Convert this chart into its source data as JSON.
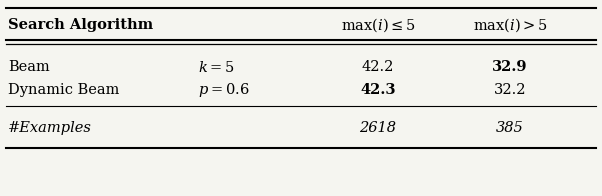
{
  "title_col": "Search Algorithm",
  "col2_header": "max$(i) \\leq 5$",
  "col3_header": "max$(i) > 5$",
  "rows": [
    {
      "name": "Beam",
      "param": "$k = 5$",
      "col2": "42.2",
      "col3": "32.9",
      "col2_bold": false,
      "col3_bold": true
    },
    {
      "name": "Dynamic Beam",
      "param": "$p = 0.6$",
      "col2": "42.3",
      "col3": "32.2",
      "col2_bold": true,
      "col3_bold": false
    }
  ],
  "footer_row": {
    "name": "#Examples",
    "col2": "2618",
    "col3": "385"
  },
  "bg_color": "#f5f5f0",
  "header_fontsize": 10.5,
  "body_fontsize": 10.5
}
